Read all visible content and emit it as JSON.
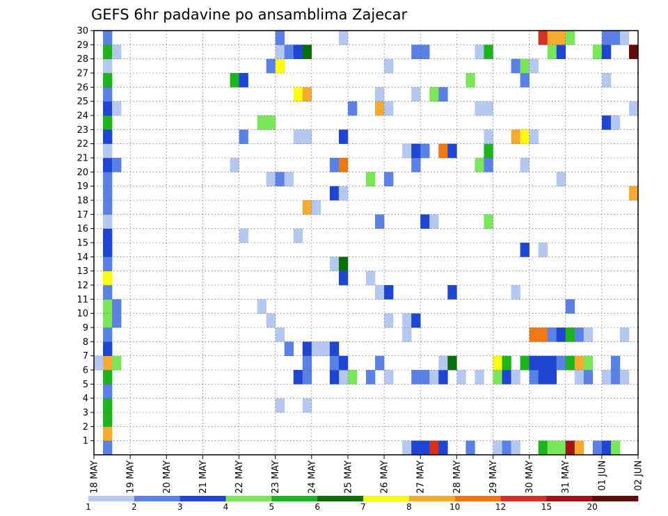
{
  "chart_data": {
    "type": "heatmap",
    "title": "GEFS 6hr padavine po ansamblima Zajecar",
    "ylabel": "",
    "xlabel": "",
    "y_ticks": [
      "1",
      "2",
      "3",
      "4",
      "5",
      "6",
      "7",
      "8",
      "9",
      "10",
      "11",
      "12",
      "13",
      "14",
      "15",
      "16",
      "17",
      "18",
      "19",
      "20",
      "21",
      "22",
      "23",
      "24",
      "25",
      "26",
      "27",
      "28",
      "29",
      "30"
    ],
    "ylim": [
      0,
      30
    ],
    "x_ticks": [
      "18 MAY",
      "19 MAY",
      "20 MAY",
      "21 MAY",
      "22 MAY",
      "23 MAY",
      "24 MAY",
      "25 MAY",
      "26 MAY",
      "27 MAY",
      "28 MAY",
      "29 MAY",
      "30 MAY",
      "31 MAY",
      "01 JUN",
      "02 JUN"
    ],
    "x_unit": "6-hour step",
    "n_steps": 60,
    "grid": true,
    "colorbar": {
      "labels": [
        "1",
        "2",
        "3",
        "4",
        "5",
        "6",
        "7",
        "8",
        "10",
        "12",
        "15",
        "20"
      ],
      "colors": [
        "#b4c8f0",
        "#5a82e6",
        "#1e46d2",
        "#7ae65a",
        "#1eb41e",
        "#0a6e0a",
        "#fafa14",
        "#f5aa32",
        "#f07814",
        "#d2321e",
        "#a01414",
        "#640a0a"
      ]
    },
    "cells": [
      {
        "m": 0,
        "s": 1,
        "c": 1
      },
      {
        "m": 1,
        "s": 1,
        "c": 7
      },
      {
        "m": 2,
        "s": 1,
        "c": 4
      },
      {
        "m": 3,
        "s": 1,
        "c": 4
      },
      {
        "m": 4,
        "s": 1,
        "c": 1
      },
      {
        "m": 5,
        "s": 1,
        "c": 4
      },
      {
        "m": 6,
        "s": 1,
        "c": 7
      },
      {
        "m": 6,
        "s": 0,
        "c": 0
      },
      {
        "m": 6,
        "s": 2,
        "c": 3
      },
      {
        "m": 7,
        "s": 1,
        "c": 2
      },
      {
        "m": 8,
        "s": 1,
        "c": 1
      },
      {
        "m": 9,
        "s": 1,
        "c": 3
      },
      {
        "m": 9,
        "s": 2,
        "c": 1
      },
      {
        "m": 10,
        "s": 1,
        "c": 3
      },
      {
        "m": 10,
        "s": 2,
        "c": 1
      },
      {
        "m": 11,
        "s": 1,
        "c": 1
      },
      {
        "m": 12,
        "s": 1,
        "c": 6
      },
      {
        "m": 13,
        "s": 1,
        "c": 1
      },
      {
        "m": 14,
        "s": 1,
        "c": 2
      },
      {
        "m": 15,
        "s": 1,
        "c": 2
      },
      {
        "m": 16,
        "s": 1,
        "c": 0
      },
      {
        "m": 17,
        "s": 1,
        "c": 1
      },
      {
        "m": 18,
        "s": 1,
        "c": 1
      },
      {
        "m": 19,
        "s": 1,
        "c": 1
      },
      {
        "m": 20,
        "s": 1,
        "c": 2
      },
      {
        "m": 20,
        "s": 2,
        "c": 1
      },
      {
        "m": 21,
        "s": 1,
        "c": 0
      },
      {
        "m": 22,
        "s": 1,
        "c": 2
      },
      {
        "m": 23,
        "s": 1,
        "c": 4
      },
      {
        "m": 24,
        "s": 1,
        "c": 2
      },
      {
        "m": 24,
        "s": 2,
        "c": 0
      },
      {
        "m": 25,
        "s": 1,
        "c": 1
      },
      {
        "m": 26,
        "s": 1,
        "c": 4
      },
      {
        "m": 27,
        "s": 1,
        "c": 0
      },
      {
        "m": 28,
        "s": 1,
        "c": 4
      },
      {
        "m": 28,
        "s": 2,
        "c": 0
      },
      {
        "m": 29,
        "s": 1,
        "c": 1
      },
      {
        "m": 0,
        "s": 34,
        "c": 0
      },
      {
        "m": 0,
        "s": 35,
        "c": 2
      },
      {
        "m": 0,
        "s": 36,
        "c": 2
      },
      {
        "m": 0,
        "s": 37,
        "c": 9
      },
      {
        "m": 0,
        "s": 38,
        "c": 2
      },
      {
        "m": 0,
        "s": 41,
        "c": 1
      },
      {
        "m": 0,
        "s": 44,
        "c": 0
      },
      {
        "m": 0,
        "s": 45,
        "c": 1
      },
      {
        "m": 0,
        "s": 46,
        "c": 0
      },
      {
        "m": 0,
        "s": 49,
        "c": 4
      },
      {
        "m": 0,
        "s": 50,
        "c": 3
      },
      {
        "m": 0,
        "s": 51,
        "c": 3
      },
      {
        "m": 0,
        "s": 52,
        "c": 10
      },
      {
        "m": 0,
        "s": 53,
        "c": 7
      },
      {
        "m": 0,
        "s": 55,
        "c": 1
      },
      {
        "m": 0,
        "s": 56,
        "c": 2
      },
      {
        "m": 0,
        "s": 57,
        "c": 3
      },
      {
        "m": 0,
        "s": 60,
        "c": 0
      },
      {
        "m": 3,
        "s": 23,
        "c": 0
      },
      {
        "m": 5,
        "s": 23,
        "c": 0
      },
      {
        "m": 3,
        "s": 20,
        "c": 0
      },
      {
        "m": 8,
        "s": 20,
        "c": 0
      },
      {
        "m": 7,
        "s": 21,
        "c": 1
      },
      {
        "m": 5,
        "s": 22,
        "c": 2
      },
      {
        "m": 5,
        "s": 28,
        "c": 3
      },
      {
        "m": 5,
        "s": 23,
        "c": 1
      },
      {
        "m": 5,
        "s": 27,
        "c": 0
      },
      {
        "m": 5,
        "s": 26,
        "c": 2
      },
      {
        "m": 5,
        "s": 30,
        "c": 1
      },
      {
        "m": 5,
        "s": 32,
        "c": 0
      },
      {
        "m": 5,
        "s": 35,
        "c": 1
      },
      {
        "m": 5,
        "s": 36,
        "c": 1
      },
      {
        "m": 5,
        "s": 37,
        "c": 0
      },
      {
        "m": 5,
        "s": 38,
        "c": 2
      },
      {
        "m": 5,
        "s": 40,
        "c": 0
      },
      {
        "m": 5,
        "s": 42,
        "c": 0
      },
      {
        "m": 5,
        "s": 44,
        "c": 3
      },
      {
        "m": 5,
        "s": 45,
        "c": 2
      },
      {
        "m": 5,
        "s": 46,
        "c": 0
      },
      {
        "m": 5,
        "s": 48,
        "c": 1
      },
      {
        "m": 5,
        "s": 49,
        "c": 2
      },
      {
        "m": 5,
        "s": 50,
        "c": 2
      },
      {
        "m": 5,
        "s": 53,
        "c": 0
      },
      {
        "m": 5,
        "s": 54,
        "c": 1
      },
      {
        "m": 5,
        "s": 56,
        "c": 0
      },
      {
        "m": 5,
        "s": 57,
        "c": 1
      },
      {
        "m": 5,
        "s": 58,
        "c": 0
      },
      {
        "m": 6,
        "s": 23,
        "c": 1
      },
      {
        "m": 6,
        "s": 26,
        "c": 1
      },
      {
        "m": 6,
        "s": 27,
        "c": 2
      },
      {
        "m": 6,
        "s": 31,
        "c": 1
      },
      {
        "m": 6,
        "s": 38,
        "c": 0
      },
      {
        "m": 6,
        "s": 39,
        "c": 5
      },
      {
        "m": 6,
        "s": 44,
        "c": 6
      },
      {
        "m": 6,
        "s": 45,
        "c": 4
      },
      {
        "m": 6,
        "s": 47,
        "c": 4
      },
      {
        "m": 6,
        "s": 48,
        "c": 2
      },
      {
        "m": 6,
        "s": 49,
        "c": 2
      },
      {
        "m": 6,
        "s": 50,
        "c": 2
      },
      {
        "m": 6,
        "s": 51,
        "c": 1
      },
      {
        "m": 6,
        "s": 52,
        "c": 4
      },
      {
        "m": 6,
        "s": 53,
        "c": 7
      },
      {
        "m": 6,
        "s": 54,
        "c": 3
      },
      {
        "m": 6,
        "s": 57,
        "c": 1
      },
      {
        "m": 7,
        "s": 23,
        "c": 2
      },
      {
        "m": 7,
        "s": 24,
        "c": 0
      },
      {
        "m": 7,
        "s": 25,
        "c": 0
      },
      {
        "m": 7,
        "s": 26,
        "c": 2
      },
      {
        "m": 8,
        "s": 34,
        "c": 0
      },
      {
        "m": 8,
        "s": 48,
        "c": 8
      },
      {
        "m": 8,
        "s": 49,
        "c": 8
      },
      {
        "m": 8,
        "s": 50,
        "c": 1
      },
      {
        "m": 8,
        "s": 51,
        "c": 2
      },
      {
        "m": 8,
        "s": 52,
        "c": 4
      },
      {
        "m": 8,
        "s": 53,
        "c": 1
      },
      {
        "m": 8,
        "s": 54,
        "c": 0
      },
      {
        "m": 8,
        "s": 58,
        "c": 0
      },
      {
        "m": 9,
        "s": 19,
        "c": 0
      },
      {
        "m": 9,
        "s": 32,
        "c": 0
      },
      {
        "m": 9,
        "s": 34,
        "c": 0
      },
      {
        "m": 9,
        "s": 35,
        "c": 2
      },
      {
        "m": 10,
        "s": 18,
        "c": 0
      },
      {
        "m": 10,
        "s": 52,
        "c": 1
      },
      {
        "m": 11,
        "s": 31,
        "c": 0
      },
      {
        "m": 11,
        "s": 32,
        "c": 2
      },
      {
        "m": 11,
        "s": 39,
        "c": 2
      },
      {
        "m": 11,
        "s": 46,
        "c": 0
      },
      {
        "m": 12,
        "s": 27,
        "c": 2
      },
      {
        "m": 12,
        "s": 30,
        "c": 0
      },
      {
        "m": 13,
        "s": 26,
        "c": 0
      },
      {
        "m": 13,
        "s": 27,
        "c": 5
      },
      {
        "m": 14,
        "s": 47,
        "c": 2
      },
      {
        "m": 14,
        "s": 49,
        "c": 0
      },
      {
        "m": 15,
        "s": 16,
        "c": 0
      },
      {
        "m": 15,
        "s": 22,
        "c": 0
      },
      {
        "m": 16,
        "s": 31,
        "c": 1
      },
      {
        "m": 16,
        "s": 36,
        "c": 2
      },
      {
        "m": 16,
        "s": 37,
        "c": 0
      },
      {
        "m": 16,
        "s": 43,
        "c": 3
      },
      {
        "m": 17,
        "s": 23,
        "c": 7
      },
      {
        "m": 17,
        "s": 24,
        "c": 0
      },
      {
        "m": 18,
        "s": 26,
        "c": 2
      },
      {
        "m": 18,
        "s": 27,
        "c": 0
      },
      {
        "m": 18,
        "s": 59,
        "c": 7
      },
      {
        "m": 19,
        "s": 19,
        "c": 0
      },
      {
        "m": 19,
        "s": 20,
        "c": 1
      },
      {
        "m": 19,
        "s": 21,
        "c": 0
      },
      {
        "m": 19,
        "s": 30,
        "c": 3
      },
      {
        "m": 19,
        "s": 32,
        "c": 1
      },
      {
        "m": 19,
        "s": 51,
        "c": 0
      },
      {
        "m": 20,
        "s": 15,
        "c": 0
      },
      {
        "m": 20,
        "s": 26,
        "c": 1
      },
      {
        "m": 20,
        "s": 27,
        "c": 8
      },
      {
        "m": 20,
        "s": 35,
        "c": 1
      },
      {
        "m": 20,
        "s": 42,
        "c": 3
      },
      {
        "m": 20,
        "s": 43,
        "c": 1
      },
      {
        "m": 20,
        "s": 47,
        "c": 0
      },
      {
        "m": 21,
        "s": 34,
        "c": 0
      },
      {
        "m": 21,
        "s": 35,
        "c": 2
      },
      {
        "m": 21,
        "s": 36,
        "c": 1
      },
      {
        "m": 21,
        "s": 38,
        "c": 8
      },
      {
        "m": 21,
        "s": 39,
        "c": 2
      },
      {
        "m": 21,
        "s": 43,
        "c": 4
      },
      {
        "m": 22,
        "s": 16,
        "c": 1
      },
      {
        "m": 22,
        "s": 22,
        "c": 0
      },
      {
        "m": 22,
        "s": 23,
        "c": 0
      },
      {
        "m": 22,
        "s": 27,
        "c": 2
      },
      {
        "m": 22,
        "s": 43,
        "c": 0
      },
      {
        "m": 22,
        "s": 46,
        "c": 7
      },
      {
        "m": 22,
        "s": 47,
        "c": 6
      },
      {
        "m": 22,
        "s": 48,
        "c": 0
      },
      {
        "m": 23,
        "s": 18,
        "c": 3
      },
      {
        "m": 23,
        "s": 19,
        "c": 3
      },
      {
        "m": 23,
        "s": 56,
        "c": 2
      },
      {
        "m": 23,
        "s": 57,
        "c": 0
      },
      {
        "m": 24,
        "s": 28,
        "c": 1
      },
      {
        "m": 24,
        "s": 31,
        "c": 7
      },
      {
        "m": 24,
        "s": 32,
        "c": 0
      },
      {
        "m": 24,
        "s": 42,
        "c": 0
      },
      {
        "m": 24,
        "s": 43,
        "c": 0
      },
      {
        "m": 24,
        "s": 59,
        "c": 0
      },
      {
        "m": 25,
        "s": 22,
        "c": 6
      },
      {
        "m": 25,
        "s": 23,
        "c": 7
      },
      {
        "m": 25,
        "s": 31,
        "c": 0
      },
      {
        "m": 25,
        "s": 35,
        "c": 0
      },
      {
        "m": 25,
        "s": 37,
        "c": 3
      },
      {
        "m": 25,
        "s": 38,
        "c": 1
      },
      {
        "m": 26,
        "s": 15,
        "c": 4
      },
      {
        "m": 26,
        "s": 16,
        "c": 2
      },
      {
        "m": 26,
        "s": 41,
        "c": 3
      },
      {
        "m": 26,
        "s": 47,
        "c": 1
      },
      {
        "m": 26,
        "s": 56,
        "c": 0
      },
      {
        "m": 27,
        "s": 19,
        "c": 1
      },
      {
        "m": 27,
        "s": 20,
        "c": 6
      },
      {
        "m": 27,
        "s": 32,
        "c": 0
      },
      {
        "m": 27,
        "s": 46,
        "c": 1
      },
      {
        "m": 27,
        "s": 47,
        "c": 3
      },
      {
        "m": 27,
        "s": 48,
        "c": 0
      },
      {
        "m": 28,
        "s": 20,
        "c": 0
      },
      {
        "m": 28,
        "s": 21,
        "c": 1
      },
      {
        "m": 28,
        "s": 22,
        "c": 2
      },
      {
        "m": 28,
        "s": 23,
        "c": 5
      },
      {
        "m": 28,
        "s": 35,
        "c": 1
      },
      {
        "m": 28,
        "s": 36,
        "c": 1
      },
      {
        "m": 28,
        "s": 42,
        "c": 0
      },
      {
        "m": 28,
        "s": 43,
        "c": 4
      },
      {
        "m": 28,
        "s": 50,
        "c": 3
      },
      {
        "m": 28,
        "s": 51,
        "c": 2
      },
      {
        "m": 28,
        "s": 55,
        "c": 3
      },
      {
        "m": 28,
        "s": 56,
        "c": 2
      },
      {
        "m": 28,
        "s": 59,
        "c": 11
      },
      {
        "m": 29,
        "s": 20,
        "c": 1
      },
      {
        "m": 29,
        "s": 27,
        "c": 0
      },
      {
        "m": 29,
        "s": 49,
        "c": 9
      },
      {
        "m": 29,
        "s": 50,
        "c": 7
      },
      {
        "m": 29,
        "s": 51,
        "c": 7
      },
      {
        "m": 29,
        "s": 52,
        "c": 3
      },
      {
        "m": 29,
        "s": 56,
        "c": 1
      },
      {
        "m": 29,
        "s": 57,
        "c": 1
      },
      {
        "m": 29,
        "s": 58,
        "c": 0
      }
    ]
  }
}
